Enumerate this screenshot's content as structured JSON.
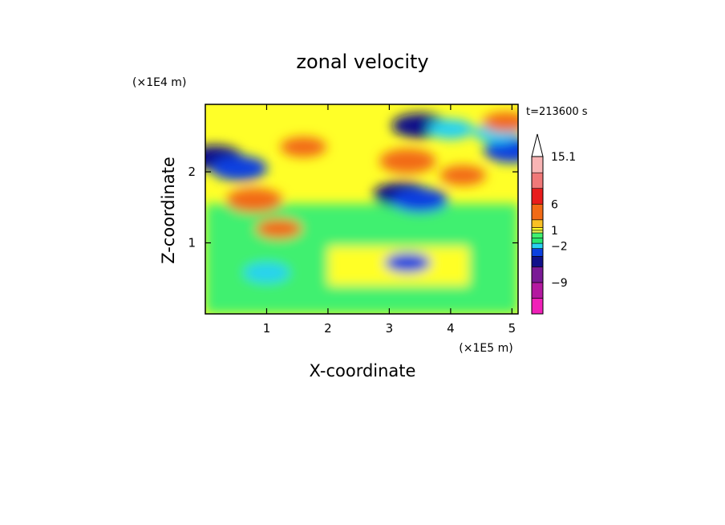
{
  "chart_data": {
    "type": "heatmap",
    "title": "zonal velocity",
    "xlabel": "X-coordinate",
    "ylabel": "Z-coordinate",
    "x_unit": "(×1E5 m)",
    "y_unit": "(×1E4 m)",
    "time_label": "t=213600 s",
    "xlim": [
      0,
      5.1
    ],
    "ylim": [
      0,
      2.95
    ],
    "xticks": [
      1,
      2,
      3,
      4,
      5
    ],
    "yticks": [
      1,
      2
    ],
    "colorbar": {
      "labels": [
        {
          "text": "15.1",
          "value": 15.1
        },
        {
          "text": "6",
          "value": 6
        },
        {
          "text": "1",
          "value": 1
        },
        {
          "text": "−2",
          "value": -2
        },
        {
          "text": "−9",
          "value": -9
        }
      ],
      "levels": [
        {
          "from": -15,
          "to": -12,
          "color": "#f020b8"
        },
        {
          "from": -12,
          "to": -9,
          "color": "#b419a0"
        },
        {
          "from": -9,
          "to": -6,
          "color": "#7a1a96"
        },
        {
          "from": -6,
          "to": -4,
          "color": "#10108a"
        },
        {
          "from": -4,
          "to": -2.5,
          "color": "#0a40e0"
        },
        {
          "from": -2.5,
          "to": -1.5,
          "color": "#28d2f0"
        },
        {
          "from": -1.5,
          "to": -0.5,
          "color": "#28e870"
        },
        {
          "from": -0.5,
          "to": 0.5,
          "color": "#40f070"
        },
        {
          "from": 0.5,
          "to": 1,
          "color": "#e6f050"
        },
        {
          "from": 1,
          "to": 1.5,
          "color": "#ffff28"
        },
        {
          "from": 1.5,
          "to": 3,
          "color": "#fac024"
        },
        {
          "from": 3,
          "to": 6,
          "color": "#f26a16"
        },
        {
          "from": 6,
          "to": 9,
          "color": "#e81c1c"
        },
        {
          "from": 9,
          "to": 12,
          "color": "#f07878"
        },
        {
          "from": 12,
          "to": 15.1,
          "color": "#f8b4b4"
        }
      ]
    },
    "field_features": [
      {
        "x": 0.15,
        "z": 2.2,
        "value": -5
      },
      {
        "x": 0.55,
        "z": 2.05,
        "value": -4
      },
      {
        "x": 3.5,
        "z": 2.65,
        "value": -5
      },
      {
        "x": 3.2,
        "z": 1.68,
        "value": -5
      },
      {
        "x": 3.5,
        "z": 1.6,
        "value": -4
      },
      {
        "x": 5.0,
        "z": 2.3,
        "value": -4
      },
      {
        "x": 4.0,
        "z": 2.6,
        "value": -2
      },
      {
        "x": 4.75,
        "z": 2.55,
        "value": -2
      },
      {
        "x": 1.0,
        "z": 0.58,
        "value": -2
      },
      {
        "x": 3.3,
        "z": 0.72,
        "value": -3
      },
      {
        "x": 0.8,
        "z": 1.6,
        "value": 4
      },
      {
        "x": 3.3,
        "z": 2.15,
        "value": 4
      },
      {
        "x": 1.2,
        "z": 1.2,
        "value": 3
      },
      {
        "x": 1.6,
        "z": 2.35,
        "value": 3
      },
      {
        "x": 4.9,
        "z": 2.7,
        "value": 3
      },
      {
        "x": 4.2,
        "z": 1.95,
        "value": 3
      }
    ]
  }
}
